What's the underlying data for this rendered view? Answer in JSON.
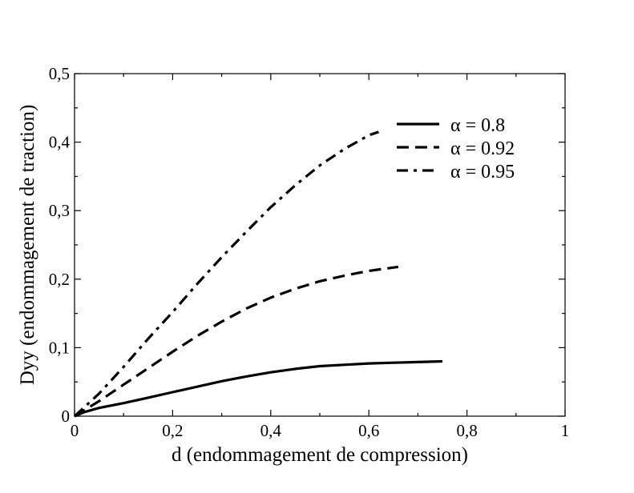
{
  "chart_data": {
    "type": "line",
    "title": "",
    "xlabel": "d (endommagement de compression)",
    "ylabel": "Dyy (endommagement de traction)",
    "xlim": [
      0,
      1
    ],
    "ylim": [
      0,
      0.5
    ],
    "x_ticks": [
      "0",
      "0,2",
      "0,4",
      "0,6",
      "0,8",
      "1"
    ],
    "y_ticks": [
      "0",
      "0,1",
      "0,2",
      "0,3",
      "0,4",
      "0,5"
    ],
    "grid": false,
    "legend_position": "top-right",
    "series": [
      {
        "name": "α = 0.8",
        "dash": "solid",
        "x": [
          0,
          0.02,
          0.05,
          0.1,
          0.15,
          0.2,
          0.25,
          0.3,
          0.35,
          0.4,
          0.45,
          0.5,
          0.55,
          0.6,
          0.65,
          0.7,
          0.75
        ],
        "y": [
          0,
          0.006,
          0.012,
          0.019,
          0.027,
          0.035,
          0.043,
          0.051,
          0.058,
          0.064,
          0.069,
          0.073,
          0.075,
          0.077,
          0.078,
          0.079,
          0.08
        ]
      },
      {
        "name": "α = 0.92",
        "dash": "dashed",
        "x": [
          0,
          0.05,
          0.1,
          0.15,
          0.2,
          0.25,
          0.3,
          0.35,
          0.4,
          0.45,
          0.5,
          0.55,
          0.6,
          0.66
        ],
        "y": [
          0,
          0.022,
          0.046,
          0.07,
          0.094,
          0.117,
          0.138,
          0.157,
          0.173,
          0.186,
          0.197,
          0.205,
          0.212,
          0.218
        ]
      },
      {
        "name": "α = 0.95",
        "dash": "dash-dot",
        "x": [
          0,
          0.05,
          0.1,
          0.15,
          0.2,
          0.25,
          0.3,
          0.35,
          0.4,
          0.45,
          0.5,
          0.55,
          0.6,
          0.62
        ],
        "y": [
          0,
          0.033,
          0.072,
          0.113,
          0.152,
          0.193,
          0.232,
          0.269,
          0.305,
          0.337,
          0.366,
          0.39,
          0.41,
          0.415
        ]
      }
    ]
  }
}
